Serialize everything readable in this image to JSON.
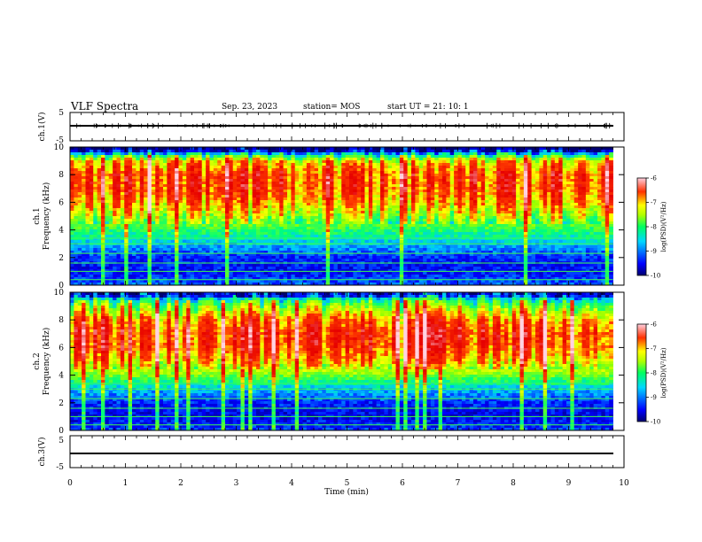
{
  "header": {
    "title": "VLF Spectra",
    "date": "Sep. 23, 2023",
    "station": "station= MOS",
    "start": "start  UT =   21: 10: 1"
  },
  "chart_data": [
    {
      "type": "line",
      "ylabel": "ch.1(V)",
      "ylim": [
        -5,
        5
      ],
      "y_ticks": [
        "5",
        "-5"
      ],
      "xlim": [
        0,
        10
      ],
      "series": [
        {
          "x": [
            0,
            9.8
          ],
          "y": [
            0,
            0
          ]
        }
      ]
    },
    {
      "type": "heatmap",
      "ylabel": "ch.1\nFrequency (kHz)",
      "ylim": [
        0,
        10
      ],
      "y_ticks": [
        "0",
        "2",
        "4",
        "6",
        "8",
        "10"
      ],
      "xlim": [
        0,
        10
      ],
      "data_extent_x": [
        0,
        9.8
      ],
      "colorbar": {
        "label": "log(PSD)(V²/Hz)",
        "range": [
          -10,
          -6
        ],
        "ticks": [
          "-6",
          "-7",
          "-8",
          "-9",
          "-10"
        ]
      },
      "band_profile": [
        {
          "freq": 0.0,
          "log_psd": -9.2
        },
        {
          "freq": 1.0,
          "log_psd": -9.5
        },
        {
          "freq": 2.0,
          "log_psd": -9.4
        },
        {
          "freq": 3.0,
          "log_psd": -8.9
        },
        {
          "freq": 4.0,
          "log_psd": -8.4
        },
        {
          "freq": 5.0,
          "log_psd": -7.8
        },
        {
          "freq": 6.0,
          "log_psd": -7.3
        },
        {
          "freq": 7.0,
          "log_psd": -7.0
        },
        {
          "freq": 8.0,
          "log_psd": -7.0
        },
        {
          "freq": 9.0,
          "log_psd": -7.5
        },
        {
          "freq": 9.5,
          "log_psd": -8.8
        },
        {
          "freq": 10.0,
          "log_psd": -9.8
        }
      ]
    },
    {
      "type": "heatmap",
      "ylabel": "ch.2\nFrequency (kHz)",
      "ylim": [
        0,
        10
      ],
      "y_ticks": [
        "0",
        "2",
        "4",
        "6",
        "8",
        "10"
      ],
      "xlim": [
        0,
        10
      ],
      "data_extent_x": [
        0,
        9.8
      ],
      "colorbar": {
        "label": "log(PSD)(V²/Hz)",
        "range": [
          -10,
          -6
        ],
        "ticks": [
          "-6",
          "-7",
          "-8",
          "-9",
          "-10"
        ]
      },
      "band_profile": [
        {
          "freq": 0.0,
          "log_psd": -9.3
        },
        {
          "freq": 1.0,
          "log_psd": -9.6
        },
        {
          "freq": 2.0,
          "log_psd": -9.4
        },
        {
          "freq": 3.0,
          "log_psd": -8.9
        },
        {
          "freq": 4.0,
          "log_psd": -8.1
        },
        {
          "freq": 5.0,
          "log_psd": -7.4
        },
        {
          "freq": 6.0,
          "log_psd": -7.0
        },
        {
          "freq": 7.0,
          "log_psd": -6.9
        },
        {
          "freq": 8.0,
          "log_psd": -7.2
        },
        {
          "freq": 9.0,
          "log_psd": -8.0
        },
        {
          "freq": 10.0,
          "log_psd": -9.2
        }
      ]
    },
    {
      "type": "line",
      "ylabel": "ch.3(V)",
      "ylim": [
        -5,
        5
      ],
      "y_ticks": [
        "5",
        "-5"
      ],
      "xlim": [
        0,
        10
      ],
      "series": [
        {
          "x": [
            0,
            9.8
          ],
          "y": [
            0,
            0
          ]
        }
      ]
    }
  ],
  "xaxis": {
    "label": "Time (min)",
    "ticks": [
      "0",
      "1",
      "2",
      "3",
      "4",
      "5",
      "6",
      "7",
      "8",
      "9",
      "10"
    ]
  }
}
